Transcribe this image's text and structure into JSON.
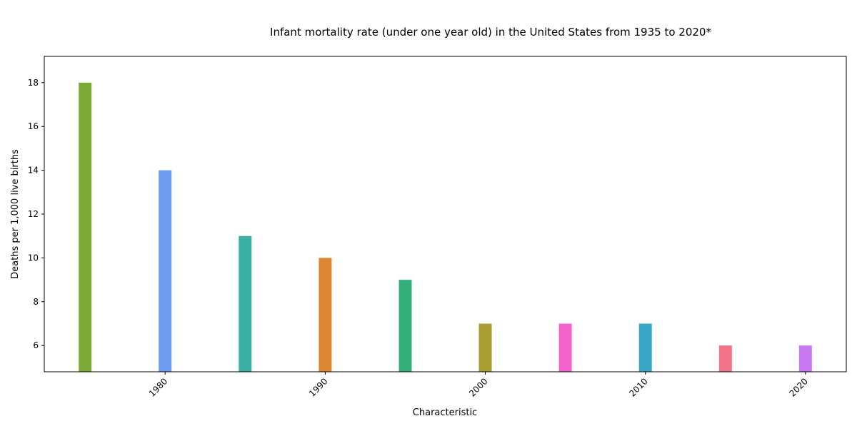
{
  "chart_data": {
    "type": "bar",
    "title": "Infant mortality rate (under one year old) in the United States from 1935 to 2020*",
    "xlabel": "Characteristic",
    "ylabel": "Deaths per 1,000 live births",
    "x": [
      1975,
      1980,
      1985,
      1990,
      1995,
      2000,
      2005,
      2010,
      2015,
      2020
    ],
    "values": [
      18,
      14,
      11,
      10,
      9,
      7,
      7,
      7,
      6,
      6
    ],
    "colors": [
      "#7aab36",
      "#6e9cf3",
      "#3aafa5",
      "#dd8733",
      "#33b07a",
      "#ab9e30",
      "#f462cd",
      "#39a7c7",
      "#f57389",
      "#c878f2"
    ],
    "xlim": [
      1972.45,
      2022.55
    ],
    "ylim": [
      4.8,
      19.2
    ],
    "x_ticks": [
      1980,
      1990,
      2000,
      2010,
      2020
    ],
    "y_ticks": [
      6,
      8,
      10,
      12,
      14,
      16,
      18
    ],
    "grid": false,
    "legend": "none"
  }
}
